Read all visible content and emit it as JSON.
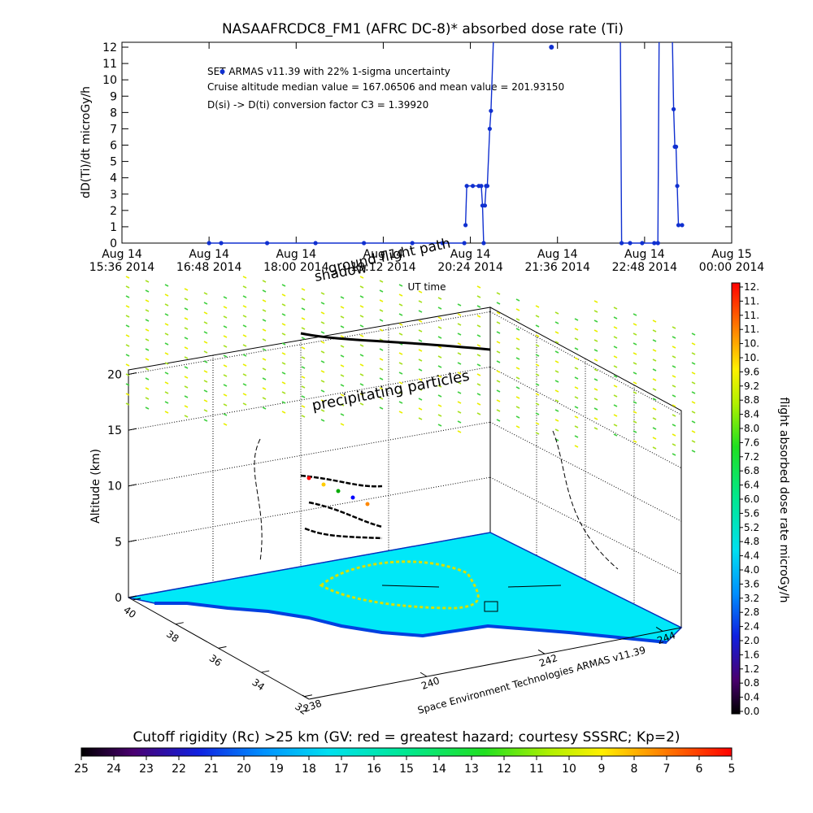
{
  "top_chart": {
    "title": "NASAAFRCDC8_FM1 (AFRC DC-8)* absorbed dose rate (Ti)",
    "ylabel": "dD(Ti)/dt microGy/h",
    "xlabel": "UT time",
    "annotations": [
      "SET ARMAS v11.39 with 22% 1-sigma uncertainty",
      "Cruise altitude median value = 167.06506 and mean value = 201.93150",
      "D(si) -> D(ti) conversion factor C3 = 1.39920"
    ],
    "x_ticks": [
      {
        "line1": "Aug 14",
        "line2": "15:36 2014"
      },
      {
        "line1": "Aug 14",
        "line2": "16:48 2014"
      },
      {
        "line1": "Aug 14",
        "line2": "18:00 2014"
      },
      {
        "line1": "Aug 14",
        "line2": "19:12 2014"
      },
      {
        "line1": "Aug 14",
        "line2": "20:24 2014"
      },
      {
        "line1": "Aug 14",
        "line2": "21:36 2014"
      },
      {
        "line1": "Aug 14",
        "line2": "22:48 2014"
      },
      {
        "line1": "Aug 15",
        "line2": "00:00 2014"
      }
    ],
    "y_ticks": [
      "0",
      "1",
      "2",
      "3",
      "4",
      "5",
      "6",
      "7",
      "8",
      "9",
      "10",
      "11",
      "12"
    ]
  },
  "chart_data": [
    {
      "type": "line",
      "title": "NASAAFRCDC8_FM1 (AFRC DC-8)* absorbed dose rate (Ti)",
      "xlabel": "UT time",
      "ylabel": "dD(Ti)/dt microGy/h",
      "xlim_minutes_after_1536": [
        0,
        504
      ],
      "ylim": [
        0,
        12
      ],
      "x_unit": "minutes after 2014-08-14 15:36 UT",
      "series": [
        {
          "color": "#1030d0",
          "segments": [
            [
              [
                72,
                0
              ],
              [
                82,
                0
              ],
              [
                120,
                0
              ],
              [
                160,
                0
              ],
              [
                200,
                0
              ],
              [
                240,
                0
              ],
              [
                265,
                0
              ],
              [
                283,
                0
              ]
            ],
            [
              [
                284,
                1.1
              ],
              [
                285,
                3.5
              ],
              [
                290,
                3.5
              ],
              [
                295,
                3.5
              ],
              [
                297,
                3.5
              ],
              [
                298,
                2.3
              ],
              [
                299,
                0
              ]
            ],
            [
              [
                300,
                2.3
              ],
              [
                301,
                3.5
              ],
              [
                302,
                3.5
              ],
              [
                304,
                7
              ],
              [
                305,
                8.1
              ],
              [
                307,
                12.3
              ]
            ],
            [
              [
                412,
                12.3
              ],
              [
                413,
                0
              ],
              [
                420,
                0
              ],
              [
                430,
                0
              ],
              [
                440,
                0
              ],
              [
                443,
                0
              ],
              [
                444,
                12.3
              ]
            ],
            [
              [
                455,
                12.3
              ],
              [
                456,
                8.2
              ],
              [
                457,
                5.9
              ],
              [
                458,
                5.9
              ],
              [
                459,
                3.5
              ],
              [
                460,
                1.1
              ],
              [
                463,
                1.1
              ]
            ]
          ],
          "isolated_points": [
            [
              83,
              10.5
            ],
            [
              355,
              12
            ]
          ]
        }
      ]
    },
    {
      "type": "heatmap",
      "title": "",
      "xlabel": "Space Environment Technologies ARMAS v11.39",
      "ylabel": "Altitude (km)",
      "z_ticks": [
        "0",
        "5",
        "10",
        "15",
        "20"
      ],
      "lat_ticks": [
        "40",
        "38",
        "36",
        "34",
        "32"
      ],
      "lon_ticks": [
        "238",
        "240",
        "242",
        "244"
      ],
      "annotations": [
        "precipitating particles",
        "shadow",
        "ground flight path"
      ]
    }
  ],
  "right_colorbar": {
    "label": "flight absorbed dose rate microGy/h",
    "ticks": [
      "0.0",
      "0.4",
      "0.8",
      "1.2",
      "1.6",
      "2.0",
      "2.4",
      "2.8",
      "3.2",
      "3.6",
      "4.0",
      "4.4",
      "4.8",
      "5.2",
      "5.6",
      "6.0",
      "6.4",
      "6.8",
      "7.2",
      "7.6",
      "8.0",
      "8.4",
      "8.8",
      "9.2",
      "9.6",
      "10.",
      "10.",
      "11.",
      "11.",
      "11.",
      "12."
    ]
  },
  "bottom_colorbar": {
    "label": "Cutoff rigidity (Rc) >25 km (GV: red = greatest hazard; courtesy SSSRC; Kp=2)",
    "ticks": [
      "25",
      "24",
      "23",
      "22",
      "21",
      "20",
      "19",
      "18",
      "17",
      "16",
      "15",
      "14",
      "13",
      "12",
      "11",
      "10",
      "9",
      "8",
      "7",
      "6",
      "5"
    ]
  },
  "colors": {
    "series": "#1030d0",
    "ocean": "#00e8f8",
    "shelf": "#0050ff",
    "particles": "#a8e020"
  }
}
